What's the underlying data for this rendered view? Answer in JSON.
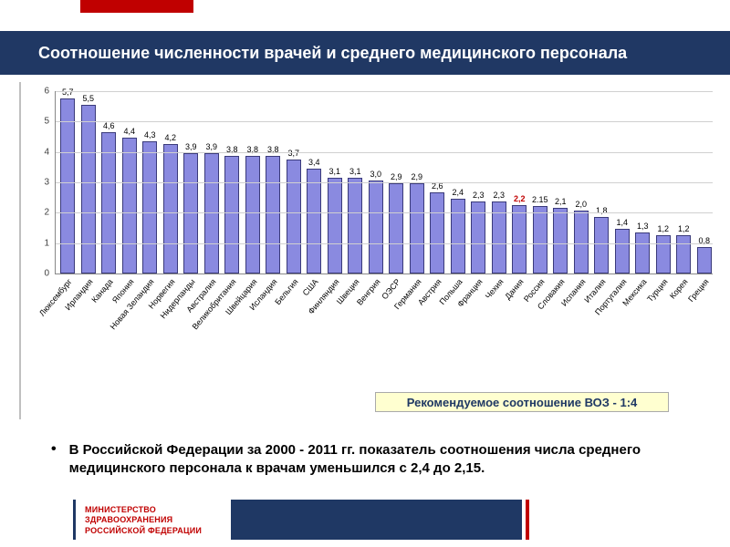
{
  "title": "Соотношение численности врачей и среднего медицинского персонала",
  "chart": {
    "type": "bar",
    "ylim": [
      0,
      6
    ],
    "ytick_step": 1,
    "bar_color": "#8a8ae0",
    "bar_border": "#3a3a7a",
    "grid_color": "#d0d0d0",
    "highlight_index": 22,
    "highlight_label_color": "#c00000",
    "categories": [
      "Люксембург",
      "Ирландия",
      "Канада",
      "Япония",
      "Новая Зеландия",
      "Норвегия",
      "Нидерланды",
      "Австралия",
      "Великобритания",
      "Швейцария",
      "Исландия",
      "Бельгия",
      "США",
      "Финляндия",
      "Швеция",
      "Венгрия",
      "ОЭСР",
      "Германия",
      "Австрия",
      "Польша",
      "Франция",
      "Чехия",
      "Дания",
      "Россия",
      "Словакия",
      "Испания",
      "Италия",
      "Португалия",
      "Мексика",
      "Турция",
      "Корея",
      "Греция"
    ],
    "values": [
      5.7,
      5.5,
      4.6,
      4.4,
      4.3,
      4.2,
      3.9,
      3.9,
      3.8,
      3.8,
      3.8,
      3.7,
      3.4,
      3.1,
      3.1,
      3.0,
      2.9,
      2.9,
      2.6,
      2.4,
      2.3,
      2.3,
      2.2,
      2.15,
      2.1,
      2.0,
      1.8,
      1.4,
      1.3,
      1.2,
      1.2,
      0.8
    ],
    "labels": [
      "5,7",
      "5,5",
      "4,6",
      "4,4",
      "4,3",
      "4,2",
      "3,9",
      "3,9",
      "3,8",
      "3,8",
      "3,8",
      "3,7",
      "3,4",
      "3,1",
      "3,1",
      "3,0",
      "2,9",
      "2,9",
      "2,6",
      "2,4",
      "2,3",
      "2,3",
      "2,2",
      "2.15",
      "2,1",
      "2,0",
      "1,8",
      "1,4",
      "1,3",
      "1,2",
      "1,2",
      "0,8"
    ]
  },
  "who_note": "Рекомендуемое соотношение  ВОЗ - 1:4",
  "bullet": "В Российской Федерации за 2000 - 2011 гг. показатель соотношения числа среднего медицинского персонала к врачам уменьшился с 2,4 до 2,15.",
  "footer": {
    "line1": "МИНИСТЕРСТВО",
    "line2": "ЗДРАВООХРАНЕНИЯ",
    "line3": "РОССИЙСКОЙ ФЕДЕРАЦИИ",
    "text_color": "#c00000",
    "block_color": "#1f3864"
  },
  "colors": {
    "title_band": "#203864",
    "accent": "#c00000",
    "note_bg": "#ffffd0"
  }
}
